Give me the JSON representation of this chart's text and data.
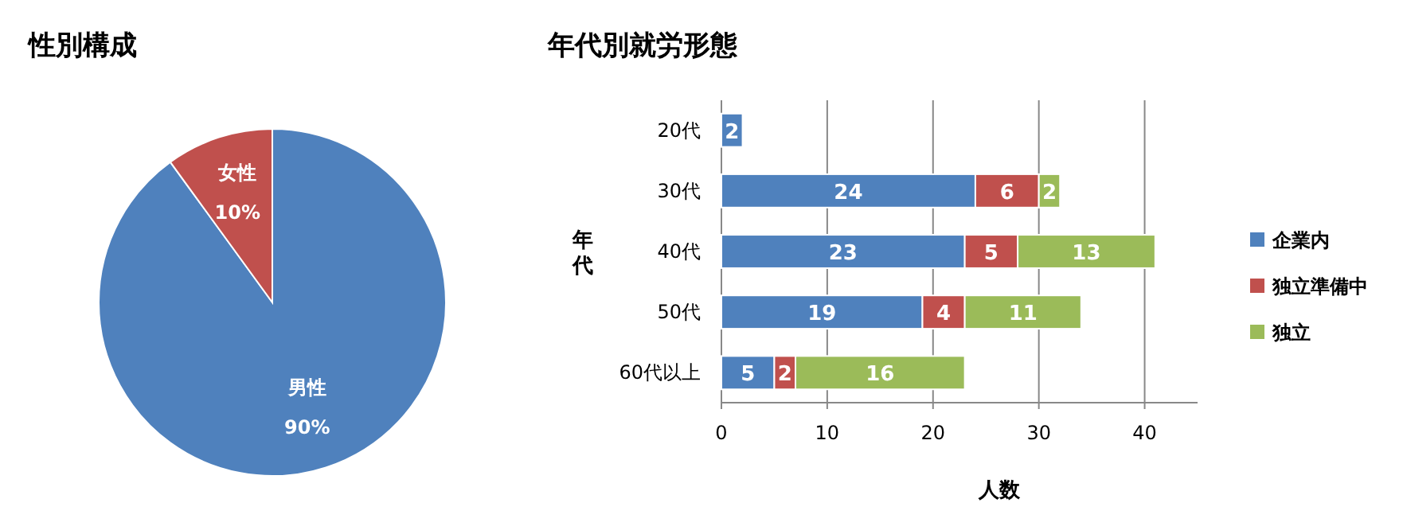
{
  "chart_data": [
    {
      "type": "pie",
      "title": "性別構成",
      "categories": [
        "男性",
        "女性"
      ],
      "values": [
        90,
        10
      ],
      "colors": [
        "#4f81bd",
        "#c0504d"
      ],
      "value_labels": [
        "90%",
        "10%"
      ]
    },
    {
      "type": "bar",
      "title": "年代別就労形態",
      "orientation": "horizontal",
      "stacked": true,
      "xlabel": "人数",
      "ylabel": "年代",
      "categories": [
        "20代",
        "30代",
        "40代",
        "50代",
        "60代以上"
      ],
      "series": [
        {
          "name": "企業内",
          "color": "#4f81bd",
          "values": [
            2,
            24,
            23,
            19,
            5
          ]
        },
        {
          "name": "独立準備中",
          "color": "#c0504d",
          "values": [
            null,
            6,
            5,
            4,
            2
          ]
        },
        {
          "name": "独立",
          "color": "#9bbb59",
          "values": [
            null,
            2,
            13,
            11,
            16
          ]
        }
      ],
      "xlim": [
        0,
        45
      ],
      "xticks": [
        0,
        10,
        20,
        30,
        40
      ],
      "grid": "x",
      "legend": "right",
      "data_labels": true
    }
  ]
}
